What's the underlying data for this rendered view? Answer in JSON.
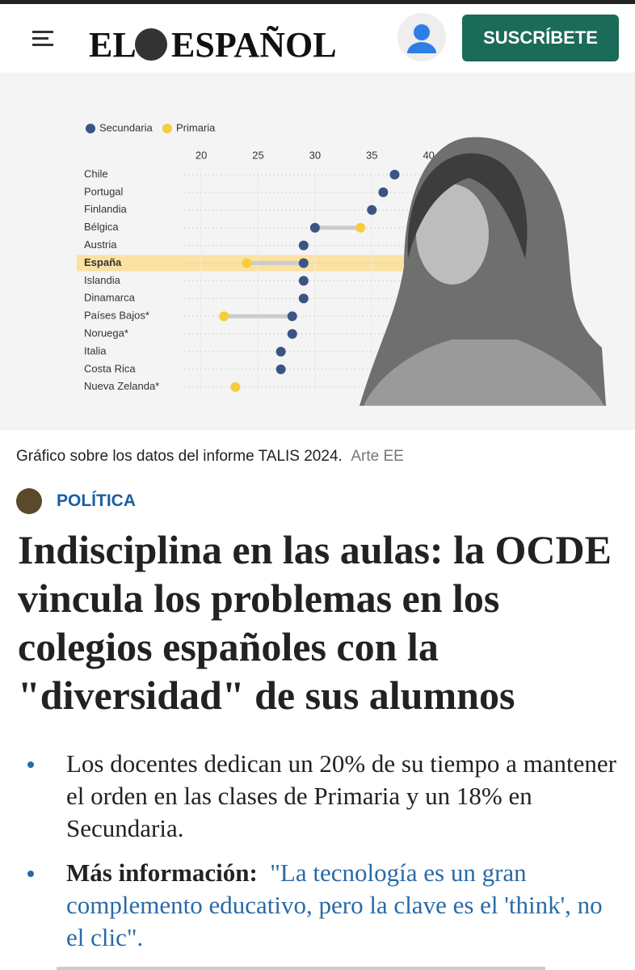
{
  "header": {
    "logo_left": "EL",
    "logo_right": "ESPAÑOL",
    "subscribe": "SUSCRÍBETE"
  },
  "chart_data": {
    "type": "dot",
    "categories": [
      "Chile",
      "Portugal",
      "Finlandia",
      "Bélgica",
      "Austria",
      "España",
      "Islandia",
      "Dinamarca",
      "Países Bajos*",
      "Noruega*",
      "Italia",
      "Costa Rica",
      "Nueva Zelanda*"
    ],
    "series": [
      {
        "name": "Secundaria",
        "color": "#3b5486",
        "values": [
          37,
          36,
          35,
          30,
          29,
          29,
          29,
          29,
          28,
          28,
          27,
          27,
          null
        ]
      },
      {
        "name": "Primaria",
        "color": "#f6cd3a",
        "values": [
          null,
          null,
          null,
          34,
          null,
          24,
          null,
          null,
          22,
          null,
          null,
          null,
          23
        ]
      }
    ],
    "xlim": [
      18.5,
      44
    ],
    "xticks": [
      20,
      25,
      30,
      35,
      40
    ],
    "highlight": "España"
  },
  "caption": {
    "text": "Gráfico sobre los datos del informe TALIS 2024.",
    "credit": "Arte EE"
  },
  "article": {
    "section": "POLÍTICA",
    "headline": "Indisciplina en las aulas: la OCDE vincula los problemas en los colegios españoles con la \"diversidad\" de sus alumnos",
    "bullets": [
      {
        "text": "Los docentes dedican un 20% de su tiempo a mantener el orden en las clases de Primaria y un 18% en Secundaria."
      },
      {
        "label": "Más información:",
        "link": "\"La tecnología es un gran complemento educativo, pero la clave es el 'think', no el clic\"."
      }
    ]
  }
}
